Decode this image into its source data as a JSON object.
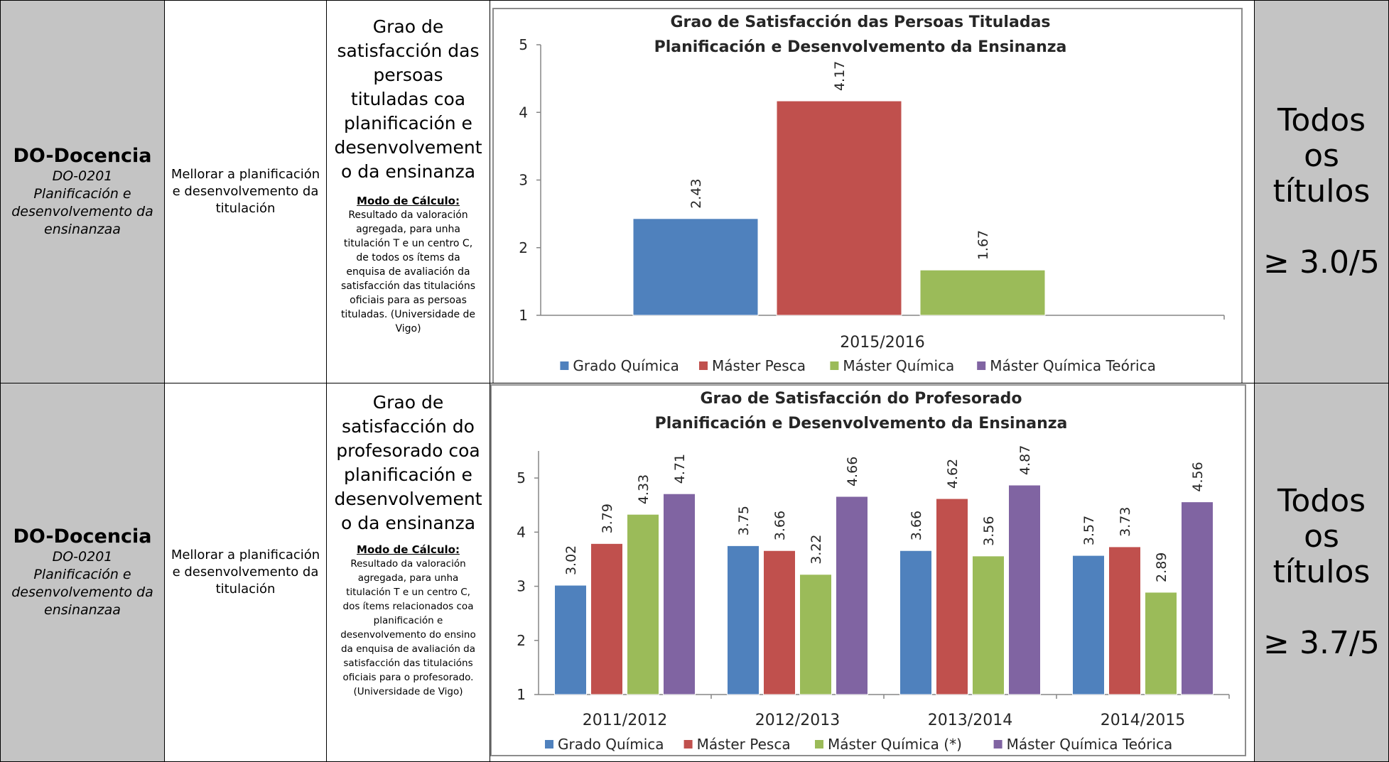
{
  "rows": [
    {
      "dimension": {
        "title": "DO-Docencia",
        "code": "DO-0201",
        "subtitle": "Planificación e desenvolvemento da ensinanzaa"
      },
      "objective": "Mellorar a planificación e desenvolvemento da titulación",
      "indicator": {
        "name": "Grao de satisfacción das persoas tituladas coa planificación e desenvolvement o da ensinanza",
        "calc_label": "Modo de Cálculo",
        "calc_text": "Resultado da valoración agregada, para unha titulación T e un centro C, de todos os ítems da enquisa de avaliación da satisfacción das titulacións oficiais para as persoas tituladas. (Universidade de Vigo)"
      },
      "target": {
        "scope": "Todos os títulos",
        "goal": "≥ 3.0/5"
      }
    },
    {
      "dimension": {
        "title": "DO-Docencia",
        "code": "DO-0201",
        "subtitle": "Planificación e desenvolvemento da ensinanzaa"
      },
      "objective": "Mellorar a planificación e desenvolvemento da titulación",
      "indicator": {
        "name": "Grao de satisfacción do profesorado coa planificación e desenvolvement o da ensinanza",
        "calc_label": "Modo de Cálculo",
        "calc_text": "Resultado da valoración agregada, para unha titulación T e un centro C, dos ítems relacionados coa planificación e desenvolvemento do ensino da enquisa de avaliación da satisfacción das titulacións oficiais para o profesorado. (Universidade de Vigo)"
      },
      "target": {
        "scope": "Todos os títulos",
        "goal": "≥ 3.7/5"
      }
    }
  ],
  "chart_data": [
    {
      "type": "bar",
      "title": "Grao de Satisfacción das Persoas Tituladas",
      "subtitle": "Planificación e Desenvolvemento da Ensinanza",
      "categories": [
        "2015/2016"
      ],
      "ylim": [
        1,
        5
      ],
      "yticks": [
        "1",
        "2",
        "3",
        "4",
        "5"
      ],
      "legend_position": "bottom",
      "series": [
        {
          "name": "Grado Química",
          "color": "#4f81bd",
          "values": [
            2.43
          ],
          "labels": [
            "2.43"
          ]
        },
        {
          "name": "Máster Pesca",
          "color": "#c0504d",
          "values": [
            4.17
          ],
          "labels": [
            "4.17"
          ]
        },
        {
          "name": "Máster Química",
          "color": "#9bbb59",
          "values": [
            1.67
          ],
          "labels": [
            "1.67"
          ]
        },
        {
          "name": "Máster Química Teórica",
          "color": "#8064a2",
          "values": [
            null
          ],
          "labels": [
            ""
          ]
        }
      ]
    },
    {
      "type": "bar",
      "title": "Grao de Satisfacción do Profesorado",
      "subtitle": "Planificación e Desenvolvemento da Ensinanza",
      "categories": [
        "2011/2012",
        "2012/2013",
        "2013/2014",
        "2014/2015"
      ],
      "ylim": [
        1,
        5.5
      ],
      "yticks": [
        "1",
        "2",
        "3",
        "4",
        "5"
      ],
      "legend_position": "bottom",
      "series": [
        {
          "name": "Grado Química",
          "color": "#4f81bd",
          "values": [
            3.02,
            3.75,
            3.66,
            3.57
          ],
          "labels": [
            "3.02",
            "3.75",
            "3.66",
            "3.57"
          ]
        },
        {
          "name": "Máster Pesca",
          "color": "#c0504d",
          "values": [
            3.79,
            3.66,
            4.62,
            3.73
          ],
          "labels": [
            "3.79",
            "3.66",
            "4.62",
            "3.73"
          ]
        },
        {
          "name": "Máster Química (*)",
          "color": "#9bbb59",
          "values": [
            4.33,
            3.22,
            3.56,
            2.89
          ],
          "labels": [
            "4.33",
            "3.22",
            "3.56",
            "2.89"
          ]
        },
        {
          "name": "Máster Química Teórica",
          "color": "#8064a2",
          "values": [
            4.71,
            4.66,
            4.87,
            4.56
          ],
          "labels": [
            "4.71",
            "4.66",
            "4.87",
            "4.56"
          ]
        }
      ]
    }
  ]
}
